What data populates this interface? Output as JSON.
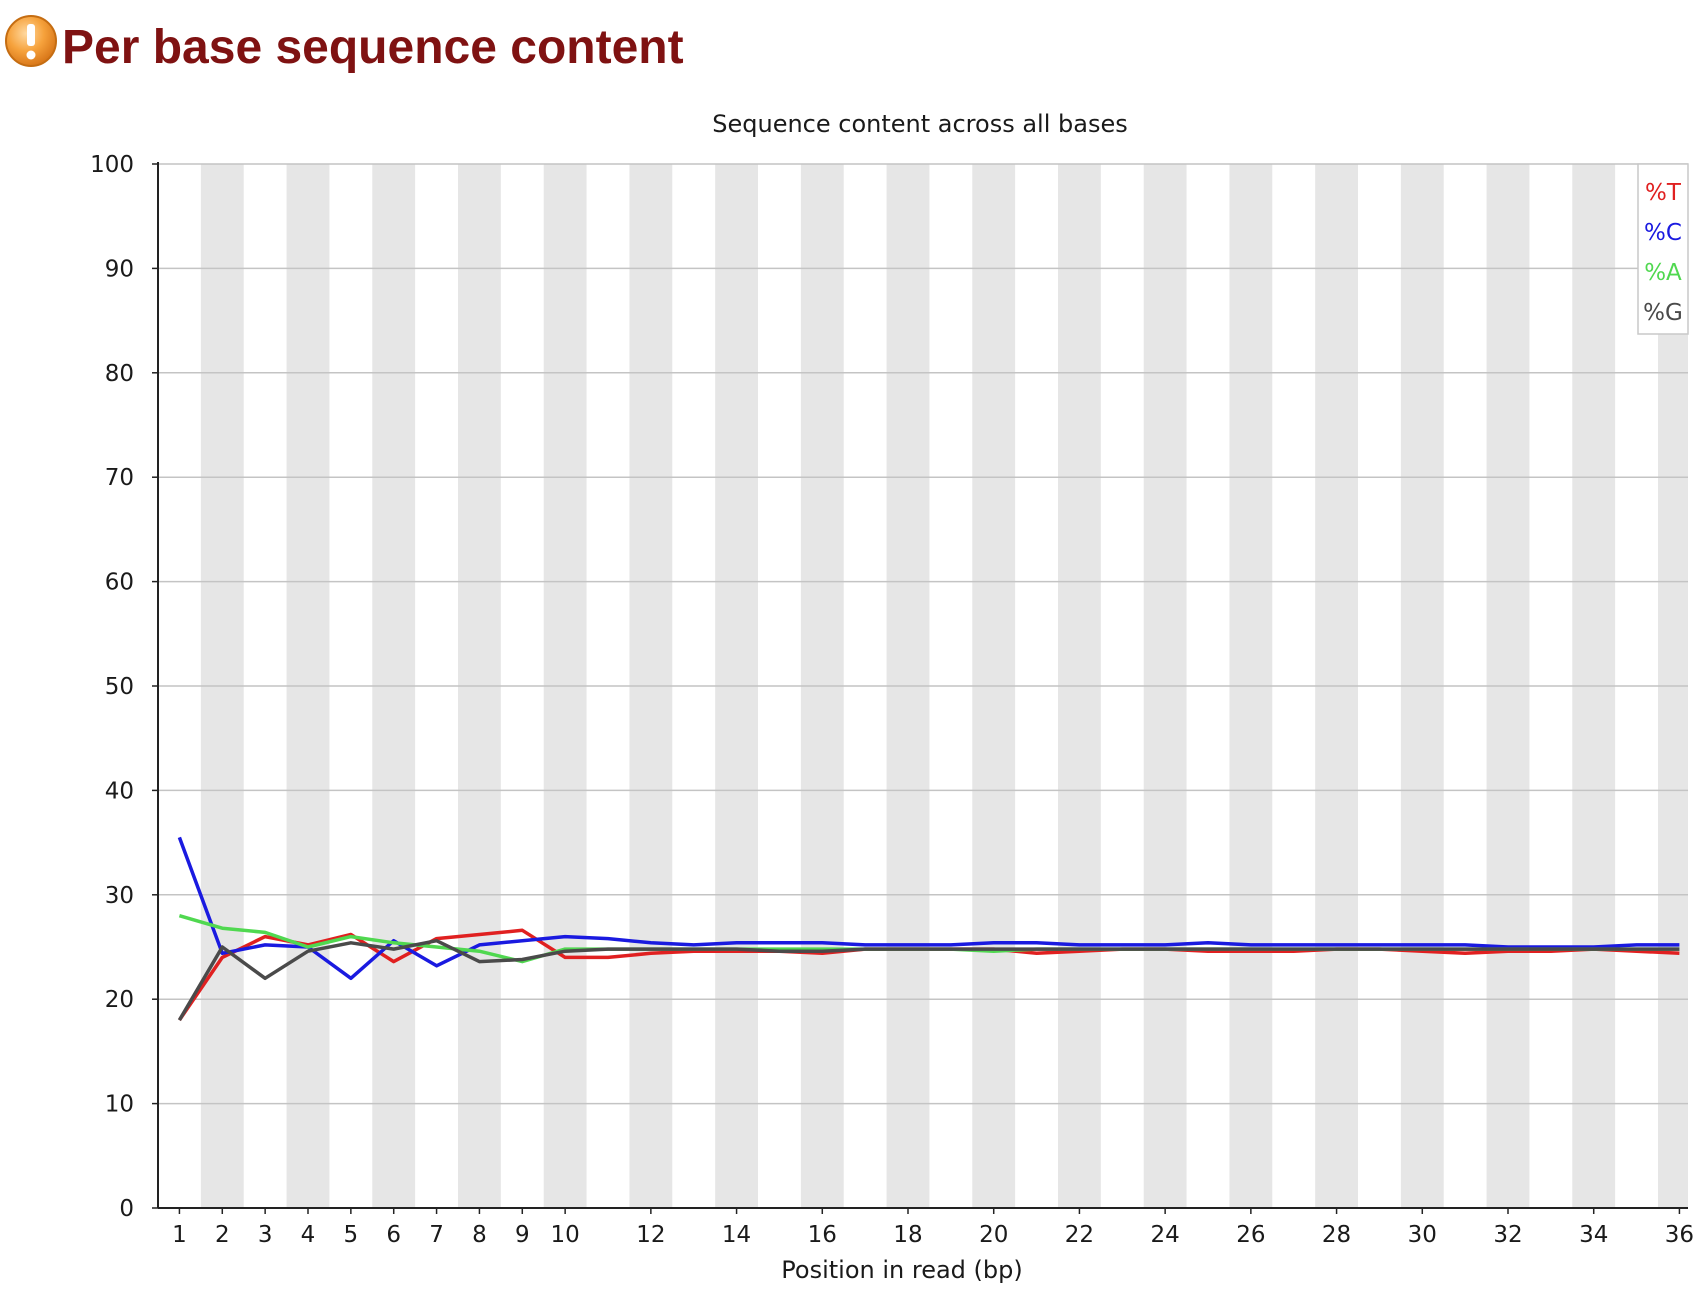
{
  "page": {
    "title": "Per base sequence content",
    "status_icon": "warning-icon"
  },
  "chart_data": {
    "type": "line",
    "title": "Sequence content across all bases",
    "xlabel": "Position in read (bp)",
    "ylabel": "",
    "ylim": [
      0,
      100
    ],
    "y_ticks": [
      0,
      10,
      20,
      30,
      40,
      50,
      60,
      70,
      80,
      90,
      100
    ],
    "x": [
      1,
      2,
      3,
      4,
      5,
      6,
      7,
      8,
      9,
      10,
      11,
      12,
      13,
      14,
      15,
      16,
      17,
      18,
      19,
      20,
      21,
      22,
      23,
      24,
      25,
      26,
      27,
      28,
      29,
      30,
      31,
      32,
      33,
      34,
      35,
      36
    ],
    "x_tick_labels": [
      "1",
      "2",
      "3",
      "4",
      "5",
      "6",
      "7",
      "8",
      "9",
      "10",
      "12",
      "14",
      "16",
      "18",
      "20",
      "22",
      "24",
      "26",
      "28",
      "30",
      "32",
      "34",
      "36"
    ],
    "grid": "horizontal",
    "background": "alternating vertical bands",
    "legend_position": "top-right",
    "series": [
      {
        "name": "%T",
        "color": "#e02020",
        "values": [
          18.0,
          24.0,
          26.0,
          25.2,
          26.2,
          23.6,
          25.8,
          26.2,
          26.6,
          24.0,
          24.0,
          24.4,
          24.6,
          24.6,
          24.6,
          24.4,
          24.8,
          24.8,
          24.8,
          24.8,
          24.4,
          24.6,
          24.8,
          24.8,
          24.6,
          24.6,
          24.6,
          24.8,
          24.8,
          24.6,
          24.4,
          24.6,
          24.6,
          24.8,
          24.6,
          24.4
        ]
      },
      {
        "name": "%C",
        "color": "#1a1ae0",
        "values": [
          35.5,
          24.4,
          25.2,
          25.0,
          22.0,
          25.6,
          23.2,
          25.2,
          25.6,
          26.0,
          25.8,
          25.4,
          25.2,
          25.4,
          25.4,
          25.4,
          25.2,
          25.2,
          25.2,
          25.4,
          25.4,
          25.2,
          25.2,
          25.2,
          25.4,
          25.2,
          25.2,
          25.2,
          25.2,
          25.2,
          25.2,
          25.0,
          25.0,
          25.0,
          25.2,
          25.2
        ]
      },
      {
        "name": "%A",
        "color": "#50d850",
        "values": [
          28.0,
          26.8,
          26.4,
          25.0,
          26.0,
          25.4,
          25.0,
          24.6,
          23.6,
          24.8,
          24.8,
          24.8,
          24.8,
          24.8,
          24.8,
          24.8,
          24.8,
          24.8,
          24.8,
          24.6,
          24.8,
          24.8,
          24.8,
          24.8,
          24.8,
          24.8,
          24.8,
          24.8,
          24.8,
          24.8,
          24.8,
          24.8,
          24.8,
          24.8,
          24.8,
          24.8
        ]
      },
      {
        "name": "%G",
        "color": "#4a4a4a",
        "values": [
          18.0,
          25.0,
          22.0,
          24.6,
          25.4,
          24.8,
          25.6,
          23.6,
          23.8,
          24.6,
          24.8,
          24.8,
          24.8,
          24.8,
          24.6,
          24.6,
          24.8,
          24.8,
          24.8,
          24.8,
          24.8,
          24.8,
          24.8,
          24.8,
          24.8,
          24.8,
          24.8,
          24.8,
          24.8,
          24.8,
          24.8,
          24.8,
          24.8,
          24.8,
          24.8,
          24.8
        ]
      }
    ]
  }
}
